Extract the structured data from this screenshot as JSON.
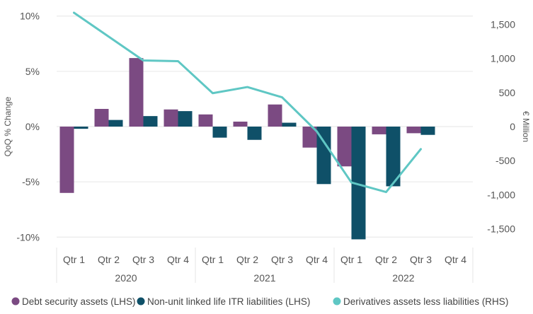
{
  "colors": {
    "debt": "#7B4A82",
    "nonunit": "#0F5068",
    "derivatives": "#5FC7C4",
    "grid": "#e6e6e6",
    "text": "#555555"
  },
  "chart_data": {
    "type": "bar",
    "title": "",
    "ylabel": "QoQ % Change",
    "y2label": "€ Million",
    "ylim": [
      -10.3,
      10.3
    ],
    "y2lim": [
      -1670,
      1670
    ],
    "yticks": [
      {
        "value": 10,
        "label": "10%"
      },
      {
        "value": 5,
        "label": "5%"
      },
      {
        "value": 0,
        "label": "0%"
      },
      {
        "value": -5,
        "label": "-5%"
      },
      {
        "value": -10,
        "label": "-10%"
      }
    ],
    "y2ticks": [
      {
        "value": 1500,
        "label": "1,500"
      },
      {
        "value": 1000,
        "label": "1,000"
      },
      {
        "value": 500,
        "label": "500"
      },
      {
        "value": 0,
        "label": "0"
      },
      {
        "value": -500,
        "label": "-500"
      },
      {
        "value": -1000,
        "label": "-1,000"
      },
      {
        "value": -1500,
        "label": "-1,500"
      }
    ],
    "categories": [
      "Qtr 1",
      "Qtr 2",
      "Qtr 3",
      "Qtr 4",
      "Qtr 1",
      "Qtr 2",
      "Qtr 3",
      "Qtr 4",
      "Qtr 1",
      "Qtr 2",
      "Qtr 3",
      "Qtr 4"
    ],
    "groups": [
      {
        "label": "2020",
        "count": 4
      },
      {
        "label": "2021",
        "count": 4
      },
      {
        "label": "2022",
        "count": 4
      }
    ],
    "series": [
      {
        "name": "Debt security assets (LHS)",
        "type": "bar",
        "axis": "left",
        "color": "#7B4A82",
        "values": [
          -6.0,
          1.6,
          6.2,
          1.55,
          1.1,
          0.45,
          2.0,
          -1.9,
          -3.6,
          -0.7,
          -0.6,
          null
        ]
      },
      {
        "name": "Non-unit linked life ITR liabilities (LHS)",
        "type": "bar",
        "axis": "left",
        "color": "#0F5068",
        "values": [
          -0.2,
          0.6,
          0.95,
          1.4,
          -1.0,
          -1.2,
          0.35,
          -5.2,
          -10.2,
          -5.4,
          -0.75,
          null
        ]
      },
      {
        "name": "Derivatives assets less liabilities (RHS)",
        "type": "line",
        "axis": "right",
        "color": "#5FC7C4",
        "values": [
          1670,
          1320,
          970,
          960,
          490,
          580,
          430,
          -70,
          -820,
          -960,
          -330,
          null
        ]
      }
    ],
    "legend": [
      {
        "label": "Debt security assets (LHS)",
        "color": "#7B4A82"
      },
      {
        "label": "Non-unit linked life ITR liabilities (LHS)",
        "color": "#0F5068"
      },
      {
        "label": "Derivatives assets less liabilities (RHS)",
        "color": "#5FC7C4"
      }
    ],
    "legend_position": "bottom"
  }
}
